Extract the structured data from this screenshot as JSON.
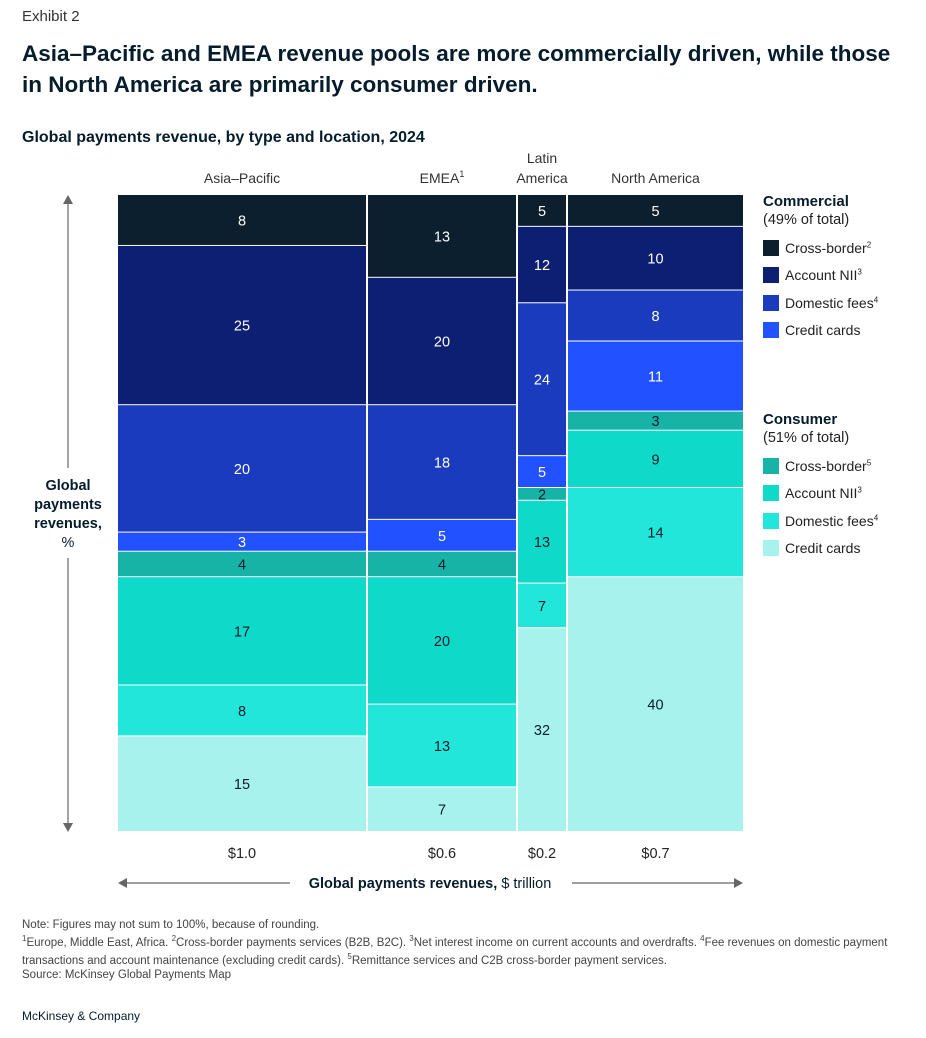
{
  "exhibit": "Exhibit 2",
  "title": "Asia–Pacific and EMEA revenue pools are more commercially driven, while those in North America are primarily consumer driven.",
  "subtitle": "Global payments revenue, by type and location, 2024",
  "chart_data": {
    "type": "marimekko",
    "title": "Global payments revenue, by type and location, 2024",
    "xlabel_bold": "Global payments revenues,",
    "xlabel_unit": "$ trillion",
    "ylabel": [
      "Global",
      "payments",
      "revenues,",
      "%"
    ],
    "categories": [
      "Asia–Pacific",
      "EMEA",
      "Latin America",
      "North America"
    ],
    "category_superscripts": [
      "",
      "1",
      "",
      ""
    ],
    "widths": [
      1.0,
      0.6,
      0.2,
      0.7
    ],
    "width_labels": [
      "$1.0",
      "$0.6",
      "$0.2",
      "$0.7"
    ],
    "series": [
      {
        "group": "Commercial",
        "name": "Cross-border",
        "sup": "2",
        "color": "#0b1f2e",
        "values": [
          8,
          13,
          5,
          5
        ]
      },
      {
        "group": "Commercial",
        "name": "Account NII",
        "sup": "3",
        "color": "#0c1f73",
        "values": [
          25,
          20,
          12,
          10
        ]
      },
      {
        "group": "Commercial",
        "name": "Domestic fees",
        "sup": "4",
        "color": "#1b3bbf",
        "values": [
          20,
          18,
          24,
          8
        ]
      },
      {
        "group": "Commercial",
        "name": "Credit cards",
        "sup": "",
        "color": "#2251ff",
        "values": [
          3,
          5,
          5,
          11
        ]
      },
      {
        "group": "Consumer",
        "name": "Cross-border",
        "sup": "5",
        "color": "#17b3a6",
        "values": [
          4,
          4,
          2,
          3
        ]
      },
      {
        "group": "Consumer",
        "name": "Account NII",
        "sup": "3",
        "color": "#0fd9c9",
        "values": [
          17,
          20,
          13,
          9
        ]
      },
      {
        "group": "Consumer",
        "name": "Domestic fees",
        "sup": "4",
        "color": "#22e6da",
        "values": [
          8,
          13,
          7,
          14
        ]
      },
      {
        "group": "Consumer",
        "name": "Credit cards",
        "sup": "",
        "color": "#a8f2ee",
        "values": [
          15,
          7,
          32,
          40
        ]
      }
    ],
    "ylim": [
      0,
      100
    ]
  },
  "legend": {
    "commercial": {
      "title": "Commercial",
      "share": "(49% of total)"
    },
    "consumer": {
      "title": "Consumer",
      "share": "(51% of total)"
    }
  },
  "notes": {
    "note": "Note: Figures may not sum to 100%, because of rounding.",
    "footnotes": [
      {
        "n": "1",
        "text": "Europe, Middle East, Africa. "
      },
      {
        "n": "2",
        "text": "Cross-border payments services (B2B, B2C). "
      },
      {
        "n": "3",
        "text": "Net interest income on current accounts and overdrafts. "
      },
      {
        "n": "4",
        "text": "Fee revenues on domestic payment transactions and account maintenance (excluding credit cards). "
      },
      {
        "n": "5",
        "text": "Remittance services and C2B cross-border payment services."
      }
    ],
    "source": "Source: McKinsey Global Payments Map"
  },
  "brand": "McKinsey & Company"
}
